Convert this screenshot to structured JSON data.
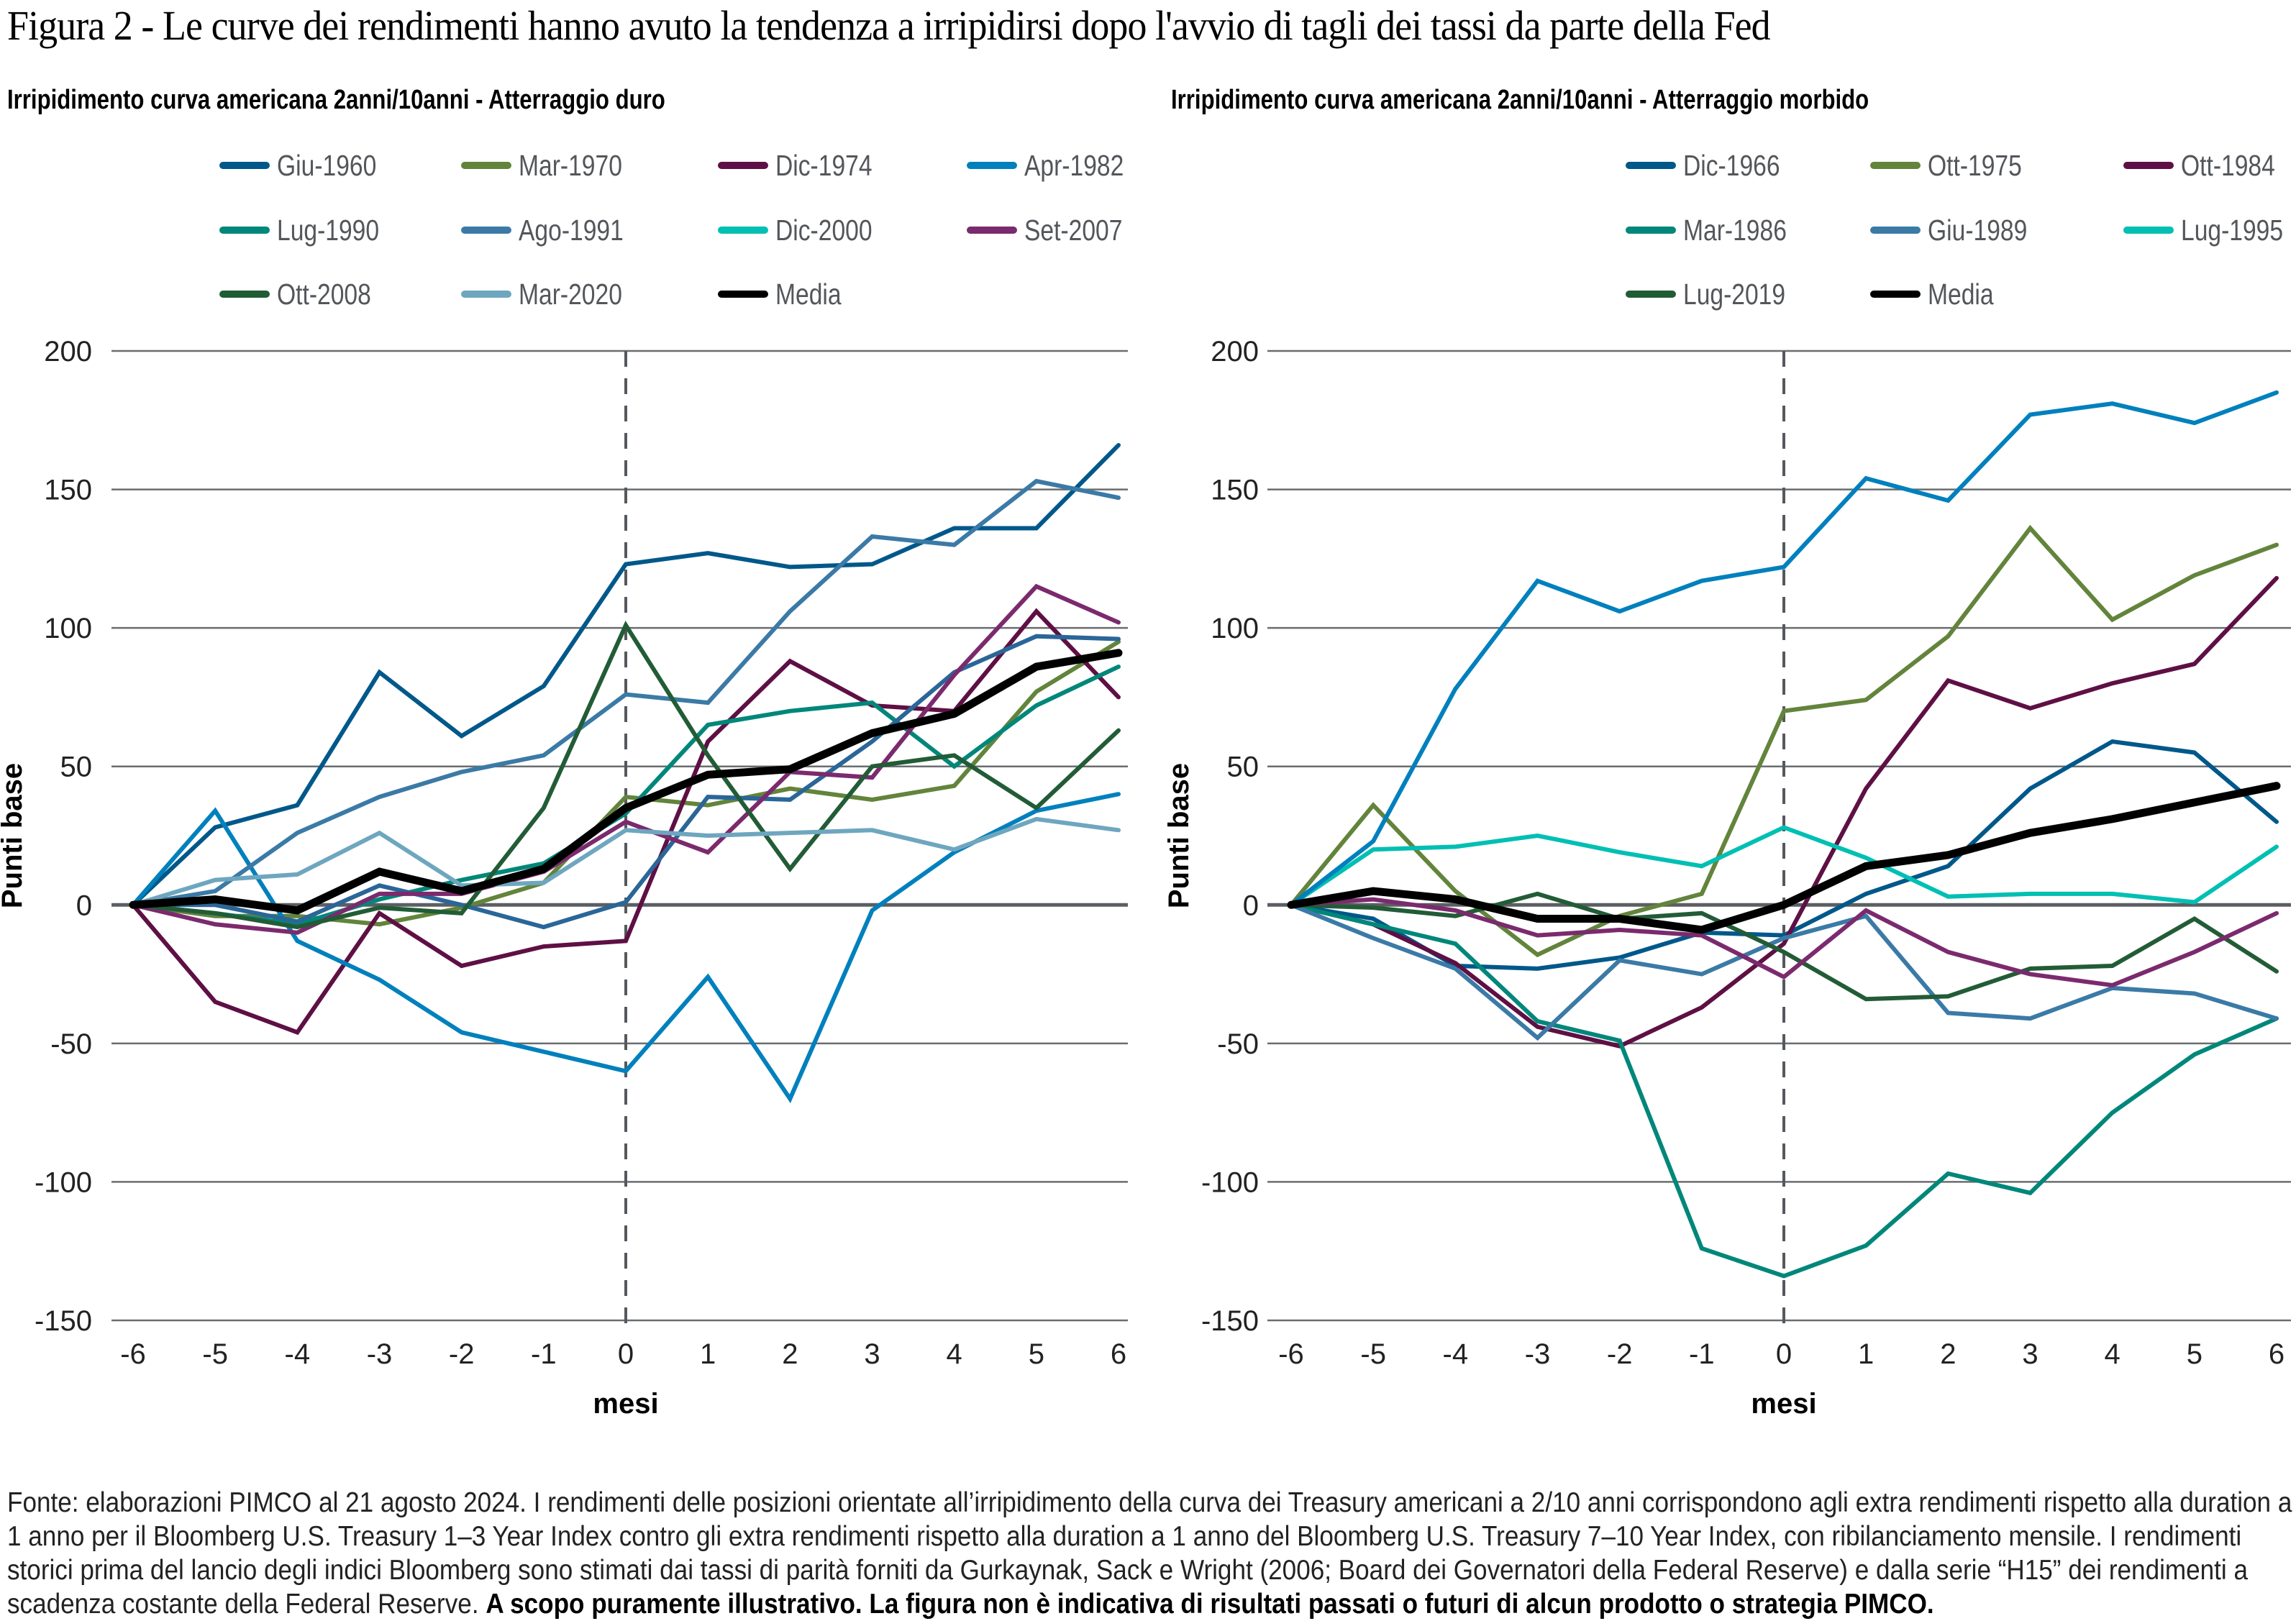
{
  "figure": {
    "title": "Figura 2 - Le curve dei rendimenti hanno avuto la tendenza a irripidirsi dopo l'avvio di tagli dei tassi da parte della Fed",
    "footnote_text": "Fonte: elaborazioni PIMCO al 21 agosto 2024. I rendimenti delle posizioni orientate all’irripidimento della curva dei Treasury americani a 2/10 anni corrispondono agli extra rendimenti rispetto alla duration a 1 anno per il Bloomberg U.S. Treasury 1–3 Year Index contro gli extra rendimenti rispetto alla duration a 1 anno del Bloomberg U.S. Treasury 7–10 Year Index, con ribilanciamento mensile. I rendimenti storici prima del lancio degli indici Bloomberg sono stimati dai tassi di parità forniti da Gurkaynak, Sack e Wright (2006; Board dei Governatori della Federal Reserve) e dalla serie “H15” dei rendimenti a scadenza costante della Federal Reserve. ",
    "footnote_bold": "A scopo puramente illustrativo. La figura non è indicativa di risultati passati o futuri di alcun prodotto o strategia PIMCO."
  },
  "chart_data": [
    {
      "type": "line",
      "title": "Irripidimento curva americana 2anni/10anni - Atterraggio duro",
      "xlabel": "mesi",
      "ylabel": "Punti base",
      "x": [
        -6,
        -5,
        -4,
        -3,
        -2,
        -1,
        0,
        1,
        2,
        3,
        4,
        5,
        6
      ],
      "xticks": [
        "-6",
        "-5",
        "-4",
        "-3",
        "-2",
        "-1",
        "0",
        "1",
        "2",
        "3",
        "4",
        "5",
        "6"
      ],
      "yticks": [
        "200",
        "150",
        "100",
        "50",
        "0",
        "-50",
        "-100",
        "-150"
      ],
      "ytick_values": [
        200,
        150,
        100,
        50,
        0,
        -50,
        -100,
        -150
      ],
      "ylim": [
        -150,
        200
      ],
      "xlim": [
        -6,
        6
      ],
      "grid": "horizontal",
      "vline_at": 0,
      "legend": "top",
      "series": [
        {
          "name": "Giu-1960",
          "color": "#00588a",
          "values": [
            0,
            28,
            36,
            84,
            61,
            79,
            123,
            127,
            122,
            123,
            136,
            136,
            166
          ]
        },
        {
          "name": "Mar-1970",
          "color": "#62843b",
          "values": [
            0,
            -4,
            -4,
            -7,
            -1,
            8,
            39,
            36,
            42,
            38,
            43,
            77,
            95
          ]
        },
        {
          "name": "Dic-1974",
          "color": "#5e1044",
          "values": [
            0,
            -35,
            -46,
            -3,
            -22,
            -15,
            -13,
            59,
            88,
            72,
            70,
            106,
            75
          ]
        },
        {
          "name": "Apr-1982",
          "color": "#0080bd",
          "values": [
            0,
            34,
            -13,
            -27,
            -46,
            -53,
            -60,
            -26,
            -70,
            -2,
            19,
            34,
            40
          ]
        },
        {
          "name": "Lug-1990",
          "color": "#00877a",
          "values": [
            0,
            -3,
            -7,
            2,
            9,
            15,
            33,
            65,
            70,
            73,
            50,
            72,
            86
          ]
        },
        {
          "name": "Ago-1991",
          "color": "#3b7aa6",
          "values": [
            0,
            5,
            26,
            39,
            48,
            54,
            76,
            73,
            106,
            133,
            130,
            153,
            147
          ]
        },
        {
          "name": "Dic-2000",
          "color": "#2a6698",
          "values": [
            0,
            0,
            -6,
            7,
            0,
            -8,
            1,
            39,
            38,
            59,
            84,
            97,
            96
          ]
        },
        {
          "name": "Set-2007",
          "color": "#7b2a6e",
          "values": [
            0,
            -7,
            -10,
            4,
            4,
            12,
            30,
            19,
            48,
            46,
            83,
            115,
            102
          ]
        },
        {
          "name": "Ott-2008",
          "color": "#225c36",
          "values": [
            0,
            -3,
            -8,
            -1,
            -3,
            35,
            101,
            54,
            13,
            50,
            54,
            35,
            63
          ]
        },
        {
          "name": "Mar-2020",
          "color": "#6ea6bf",
          "values": [
            0,
            9,
            11,
            26,
            7,
            8,
            27,
            25,
            26,
            27,
            20,
            31,
            27
          ]
        },
        {
          "name": "Media",
          "color": "#000000",
          "values": [
            0,
            2,
            -2,
            12,
            5,
            13,
            35,
            47,
            49,
            62,
            69,
            86,
            91
          ]
        }
      ],
      "legend_order": [
        "Giu-1960",
        "Mar-1970",
        "Dic-1974",
        "Apr-1982",
        "Lug-1990",
        "Ago-1991",
        "Dic-2000",
        "Set-2007",
        "Ott-2008",
        "Mar-2020",
        "Media"
      ],
      "legend_colors": {
        "Dic-2000": "#00bfb3"
      }
    },
    {
      "type": "line",
      "title": "Irripidimento curva americana 2anni/10anni - Atterraggio morbido",
      "xlabel": "mesi",
      "ylabel": "Punti base",
      "x": [
        -6,
        -5,
        -4,
        -3,
        -2,
        -1,
        0,
        1,
        2,
        3,
        4,
        5,
        6
      ],
      "xticks": [
        "-6",
        "-5",
        "-4",
        "-3",
        "-2",
        "-1",
        "0",
        "1",
        "2",
        "3",
        "4",
        "5",
        "6"
      ],
      "yticks": [
        "200",
        "150",
        "100",
        "50",
        "0",
        "-50",
        "-100",
        "-150"
      ],
      "ytick_values": [
        200,
        150,
        100,
        50,
        0,
        -50,
        -100,
        -150
      ],
      "ylim": [
        -150,
        200
      ],
      "xlim": [
        -6,
        6
      ],
      "grid": "horizontal",
      "vline_at": 0,
      "legend": "top-right",
      "series": [
        {
          "name": "Dic-1966",
          "color": "#00588a",
          "values": [
            0,
            -5,
            -22,
            -23,
            -19,
            -10,
            -11,
            4,
            14,
            42,
            59,
            55,
            30
          ]
        },
        {
          "name": "Ott-1975",
          "color": "#62843b",
          "values": [
            0,
            36,
            5,
            -18,
            -4,
            4,
            70,
            74,
            97,
            136,
            103,
            119,
            130
          ]
        },
        {
          "name": "Ott-1984",
          "color": "#5e1044",
          "values": [
            0,
            -7,
            -21,
            -44,
            -51,
            -37,
            -14,
            42,
            81,
            71,
            80,
            87,
            118
          ]
        },
        {
          "name": "Mar-1986",
          "color": "#00877a",
          "values": [
            0,
            -7,
            -14,
            -42,
            -49,
            -124,
            -134,
            -123,
            -97,
            -104,
            -75,
            -54,
            -41
          ]
        },
        {
          "name": "Giu-1989",
          "color": "#3b7aa6",
          "values": [
            0,
            -12,
            -23,
            -48,
            -20,
            -25,
            -12,
            -4,
            -39,
            -41,
            -30,
            -32,
            -41
          ]
        },
        {
          "name": "Lug-1995",
          "color": "#00bfb3",
          "values": [
            0,
            20,
            21,
            25,
            19,
            14,
            28,
            17,
            3,
            4,
            4,
            1,
            21
          ]
        },
        {
          "name": "Lug-2019",
          "color": "#225c36",
          "values": [
            0,
            -1,
            -4,
            4,
            -5,
            -3,
            -17,
            -34,
            -33,
            -23,
            -22,
            -5,
            -24
          ]
        },
        {
          "name": "",
          "color": "#0080bd",
          "values": [
            0,
            23,
            78,
            117,
            106,
            117,
            122,
            154,
            146,
            177,
            181,
            174,
            185
          ]
        },
        {
          "name": "",
          "color": "#7b2a6e",
          "values": [
            0,
            2,
            -2,
            -11,
            -9,
            -11,
            -26,
            -2,
            -17,
            -25,
            -29,
            -17,
            -3
          ]
        },
        {
          "name": "Media",
          "color": "#000000",
          "values": [
            0,
            5,
            2,
            -5,
            -5,
            -9,
            0,
            14,
            18,
            26,
            31,
            37,
            43
          ]
        }
      ],
      "legend_order": [
        "Dic-1966",
        "Ott-1975",
        "Ott-1984",
        "Mar-1986",
        "Giu-1989",
        "Lug-1995",
        "Lug-2019",
        "Media"
      ]
    }
  ]
}
